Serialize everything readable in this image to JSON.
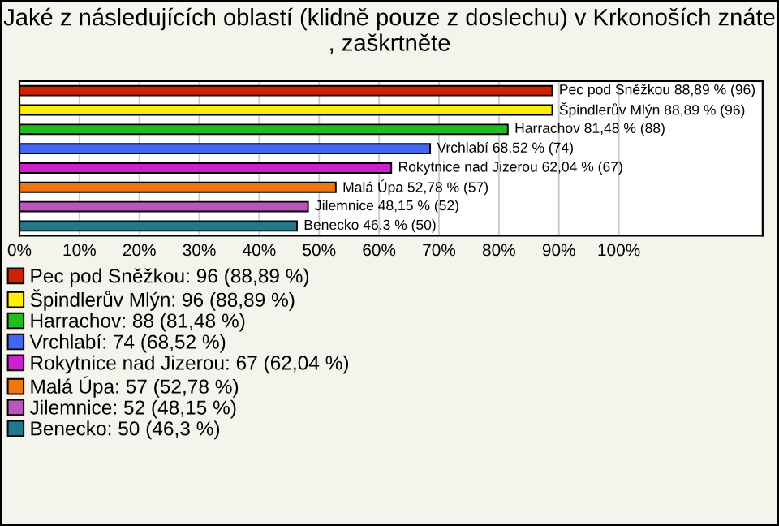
{
  "chart_data": {
    "type": "bar",
    "orientation": "horizontal",
    "title": "Jaké z následujících oblastí (klidně pouze z doslechu) v Krkonoších znáte , zaškrtněte",
    "categories": [
      null,
      null,
      null,
      null,
      null,
      null,
      null,
      null
    ],
    "series": [
      {
        "name": "Pec pod Sněžkou: 96 (88,89 %)",
        "color": "#cc2200",
        "values": [
          88.89,
          null,
          null,
          null,
          null,
          null,
          null,
          null
        ],
        "value_labels": [
          "Pec pod Sněžkou 88,89 % (96)",
          null,
          null,
          null,
          null,
          null,
          null,
          null
        ]
      },
      {
        "name": "Špindlerův Mlýn: 96 (88,89 %)",
        "color": "#ffee00",
        "values": [
          null,
          88.89,
          null,
          null,
          null,
          null,
          null,
          null
        ],
        "value_labels": [
          null,
          "Špindlerův Mlýn 88,89 % (96)",
          null,
          null,
          null,
          null,
          null,
          null
        ]
      },
      {
        "name": "Harrachov: 88 (81,48 %)",
        "color": "#22bb22",
        "values": [
          null,
          null,
          81.48,
          null,
          null,
          null,
          null,
          null
        ],
        "value_labels": [
          null,
          null,
          "Harrachov 81,48 % (88)",
          null,
          null,
          null,
          null,
          null
        ]
      },
      {
        "name": "Vrchlabí: 74 (68,52 %)",
        "color": "#4466ee",
        "values": [
          null,
          null,
          null,
          68.52,
          null,
          null,
          null,
          null
        ],
        "value_labels": [
          null,
          null,
          null,
          "Vrchlabí 68,52 % (74)",
          null,
          null,
          null,
          null
        ]
      },
      {
        "name": "Rokytnice nad Jizerou: 67 (62,04 %)",
        "color": "#cc22cc",
        "values": [
          null,
          null,
          null,
          null,
          62.04,
          null,
          null,
          null
        ],
        "value_labels": [
          null,
          null,
          null,
          null,
          "Rokytnice nad Jizerou 62,04 % (67)",
          null,
          null,
          null
        ]
      },
      {
        "name": "Malá Úpa: 57 (52,78 %)",
        "color": "#ee7711",
        "values": [
          null,
          null,
          null,
          null,
          null,
          52.78,
          null,
          null
        ],
        "value_labels": [
          null,
          null,
          null,
          null,
          null,
          "Malá Úpa 52,78 % (57)",
          null,
          null
        ]
      },
      {
        "name": "Jilemnice: 52 (48,15 %)",
        "color": "#bb55bb",
        "values": [
          null,
          null,
          null,
          null,
          null,
          null,
          48.15,
          null
        ],
        "value_labels": [
          null,
          null,
          null,
          null,
          null,
          null,
          "Jilemnice 48,15 % (52)",
          null
        ]
      },
      {
        "name": "Benecko: 50 (46,3 %)",
        "color": "#227788",
        "values": [
          null,
          null,
          null,
          null,
          null,
          null,
          null,
          46.3
        ],
        "value_labels": [
          null,
          null,
          null,
          null,
          null,
          null,
          null,
          "Benecko 46,3 % (50)"
        ]
      }
    ],
    "xlim": [
      0,
      124
    ],
    "xticks": [
      {
        "value": 0,
        "label": "0%"
      },
      {
        "value": 10,
        "label": "10%"
      },
      {
        "value": 20,
        "label": "20%"
      },
      {
        "value": 30,
        "label": "30%"
      },
      {
        "value": 40,
        "label": "40%"
      },
      {
        "value": 50,
        "label": "50%"
      },
      {
        "value": 60,
        "label": "60%"
      },
      {
        "value": 70,
        "label": "70%"
      },
      {
        "value": 80,
        "label": "80%"
      },
      {
        "value": 90,
        "label": "90%"
      },
      {
        "value": 100,
        "label": "100%"
      }
    ],
    "tick_labels": "x",
    "grid": "x",
    "legend": "bottom"
  }
}
